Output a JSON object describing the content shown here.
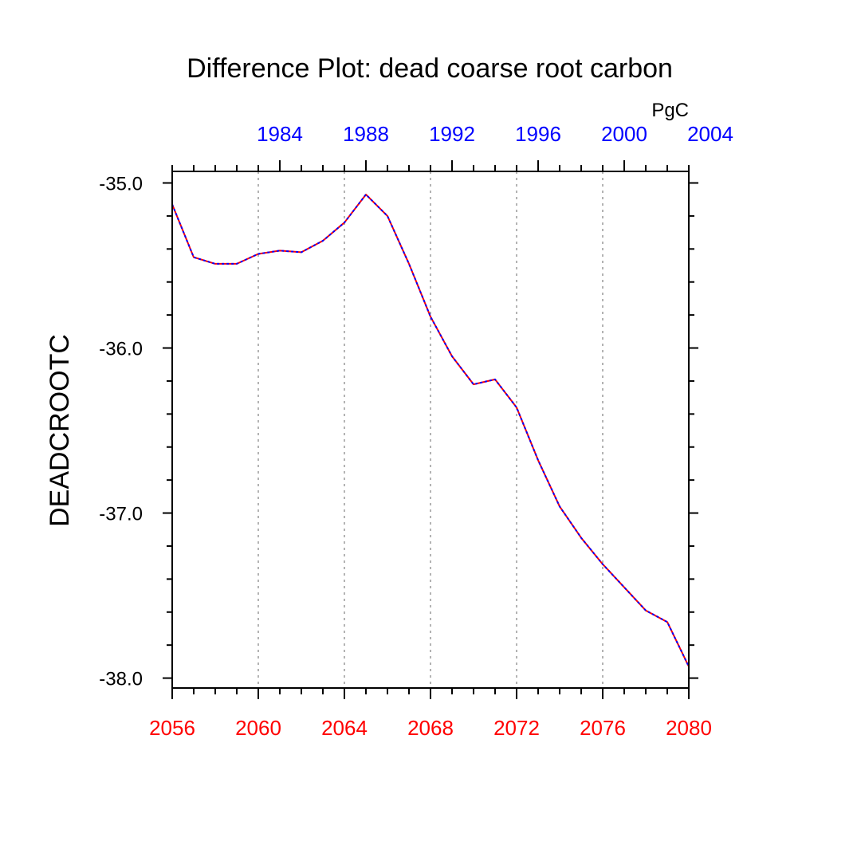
{
  "chart_data": {
    "type": "line",
    "title": "Difference Plot: dead coarse root carbon",
    "ylabel": "DEADCROOTC",
    "units": "PgC",
    "ylim": [
      -38.06,
      -34.93
    ],
    "yticks": [
      -35.0,
      -36.0,
      -37.0,
      -38.0
    ],
    "ytick_labels": [
      "-35.0",
      "-36.0",
      "-37.0",
      "-38.0"
    ],
    "y_minor_step": 0.2,
    "x_bottom": {
      "range": [
        2056,
        2080
      ],
      "ticks": [
        2056,
        2060,
        2064,
        2068,
        2072,
        2076,
        2080
      ],
      "tick_labels": [
        "2056",
        "2060",
        "2064",
        "2068",
        "2072",
        "2076",
        "2080"
      ],
      "color": "#ff0000"
    },
    "x_top": {
      "range": [
        1979,
        2003
      ],
      "ticks": [
        1984,
        1988,
        1992,
        1996,
        2000,
        2004
      ],
      "tick_labels": [
        "1984",
        "1988",
        "1992",
        "1996",
        "2000",
        "2004"
      ],
      "color": "#0000ff"
    },
    "grid_x": [
      2060,
      2064,
      2068,
      2072,
      2076
    ],
    "x": [
      2056,
      2057,
      2058,
      2059,
      2060,
      2061,
      2062,
      2063,
      2064,
      2065,
      2066,
      2067,
      2068,
      2069,
      2070,
      2071,
      2072,
      2073,
      2074,
      2075,
      2076,
      2077,
      2078,
      2079,
      2080
    ],
    "series": [
      {
        "name": "difference",
        "color_primary": "#ff0000",
        "color_dash": "#0000ff",
        "values": [
          -35.13,
          -35.45,
          -35.49,
          -35.49,
          -35.43,
          -35.41,
          -35.42,
          -35.35,
          -35.24,
          -35.07,
          -35.2,
          -35.49,
          -35.81,
          -36.05,
          -36.22,
          -36.19,
          -36.36,
          -36.68,
          -36.96,
          -37.15,
          -37.31,
          -37.45,
          -37.59,
          -37.66,
          -37.93
        ]
      }
    ]
  }
}
